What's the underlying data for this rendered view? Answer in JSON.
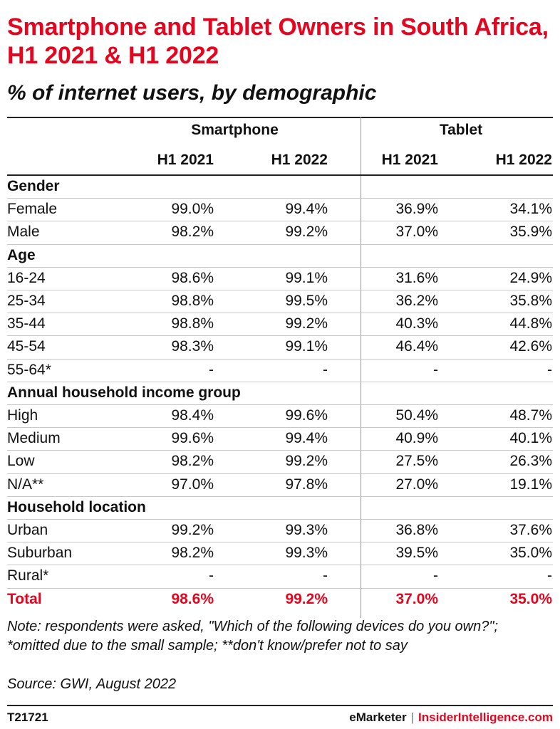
{
  "title": "Smartphone and Tablet Owners in South Africa, H1 2021 & H1 2022",
  "subtitle": "% of internet users, by demographic",
  "note": "Note: respondents were asked, \"Which of the following devices do you own?\"; *omitted due to the small sample; **don't know/prefer not to say",
  "source": "Source: GWI, August 2022",
  "footer": {
    "chart_id": "T21721",
    "brand_left": "eMarketer",
    "separator": "|",
    "brand_right": "InsiderIntelligence.com"
  },
  "colors": {
    "accent": "#e4051f",
    "text": "#111111",
    "rule": "#c8c8c8"
  },
  "chart_data": {
    "type": "table",
    "groups": [
      "Smartphone",
      "Tablet"
    ],
    "columns": [
      "H1 2021",
      "H1 2022",
      "H1 2021",
      "H1 2022"
    ],
    "rows": [
      {
        "label": "Gender",
        "section": true
      },
      {
        "label": "Female",
        "values": [
          "99.0%",
          "99.4%",
          "36.9%",
          "34.1%"
        ]
      },
      {
        "label": "Male",
        "values": [
          "98.2%",
          "99.2%",
          "37.0%",
          "35.9%"
        ]
      },
      {
        "label": "Age",
        "section": true
      },
      {
        "label": "16-24",
        "values": [
          "98.6%",
          "99.1%",
          "31.6%",
          "24.9%"
        ]
      },
      {
        "label": "25-34",
        "values": [
          "98.8%",
          "99.5%",
          "36.2%",
          "35.8%"
        ]
      },
      {
        "label": "35-44",
        "values": [
          "98.8%",
          "99.2%",
          "40.3%",
          "44.8%"
        ]
      },
      {
        "label": "45-54",
        "values": [
          "98.3%",
          "99.1%",
          "46.4%",
          "42.6%"
        ]
      },
      {
        "label": "55-64*",
        "values": [
          "-",
          "-",
          "-",
          "-"
        ]
      },
      {
        "label": "Annual household income group",
        "section": true
      },
      {
        "label": "High",
        "values": [
          "98.4%",
          "99.6%",
          "50.4%",
          "48.7%"
        ]
      },
      {
        "label": "Medium",
        "values": [
          "99.6%",
          "99.4%",
          "40.9%",
          "40.1%"
        ]
      },
      {
        "label": "Low",
        "values": [
          "98.2%",
          "99.2%",
          "27.5%",
          "26.3%"
        ]
      },
      {
        "label": "N/A**",
        "values": [
          "97.0%",
          "97.8%",
          "27.0%",
          "19.1%"
        ]
      },
      {
        "label": "Household location",
        "section": true
      },
      {
        "label": "Urban",
        "values": [
          "99.2%",
          "99.3%",
          "36.8%",
          "37.6%"
        ]
      },
      {
        "label": "Suburban",
        "values": [
          "98.2%",
          "99.3%",
          "39.5%",
          "35.0%"
        ]
      },
      {
        "label": "Rural*",
        "values": [
          "-",
          "-",
          "-",
          "-"
        ]
      },
      {
        "label": "Total",
        "values": [
          "98.6%",
          "99.2%",
          "37.0%",
          "35.0%"
        ],
        "total": true
      }
    ]
  }
}
